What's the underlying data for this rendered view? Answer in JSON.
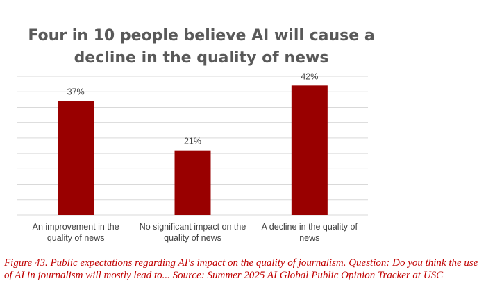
{
  "chart_data": {
    "type": "bar",
    "title": "Four in 10 people believe AI will cause a decline in the quality of news",
    "categories": [
      [
        "An improvement in the",
        "quality of news"
      ],
      [
        "No significant impact on the",
        "quality of news"
      ],
      [
        "A decline in the quality of",
        "news"
      ]
    ],
    "values": [
      37,
      21,
      42
    ],
    "data_labels": [
      "37%",
      "21%",
      "42%"
    ],
    "ylim": [
      0,
      45
    ],
    "ytick_step": 5,
    "grid": true,
    "bar_color": "#990000",
    "xlabel": "",
    "ylabel": ""
  },
  "caption": "Figure 43. Public expectations regarding AI's impact on the quality of journalism. Question: Do you think the use of AI in journalism will mostly lead to... Source: Summer 2025 AI Global Public Opinion Tracker at USC"
}
